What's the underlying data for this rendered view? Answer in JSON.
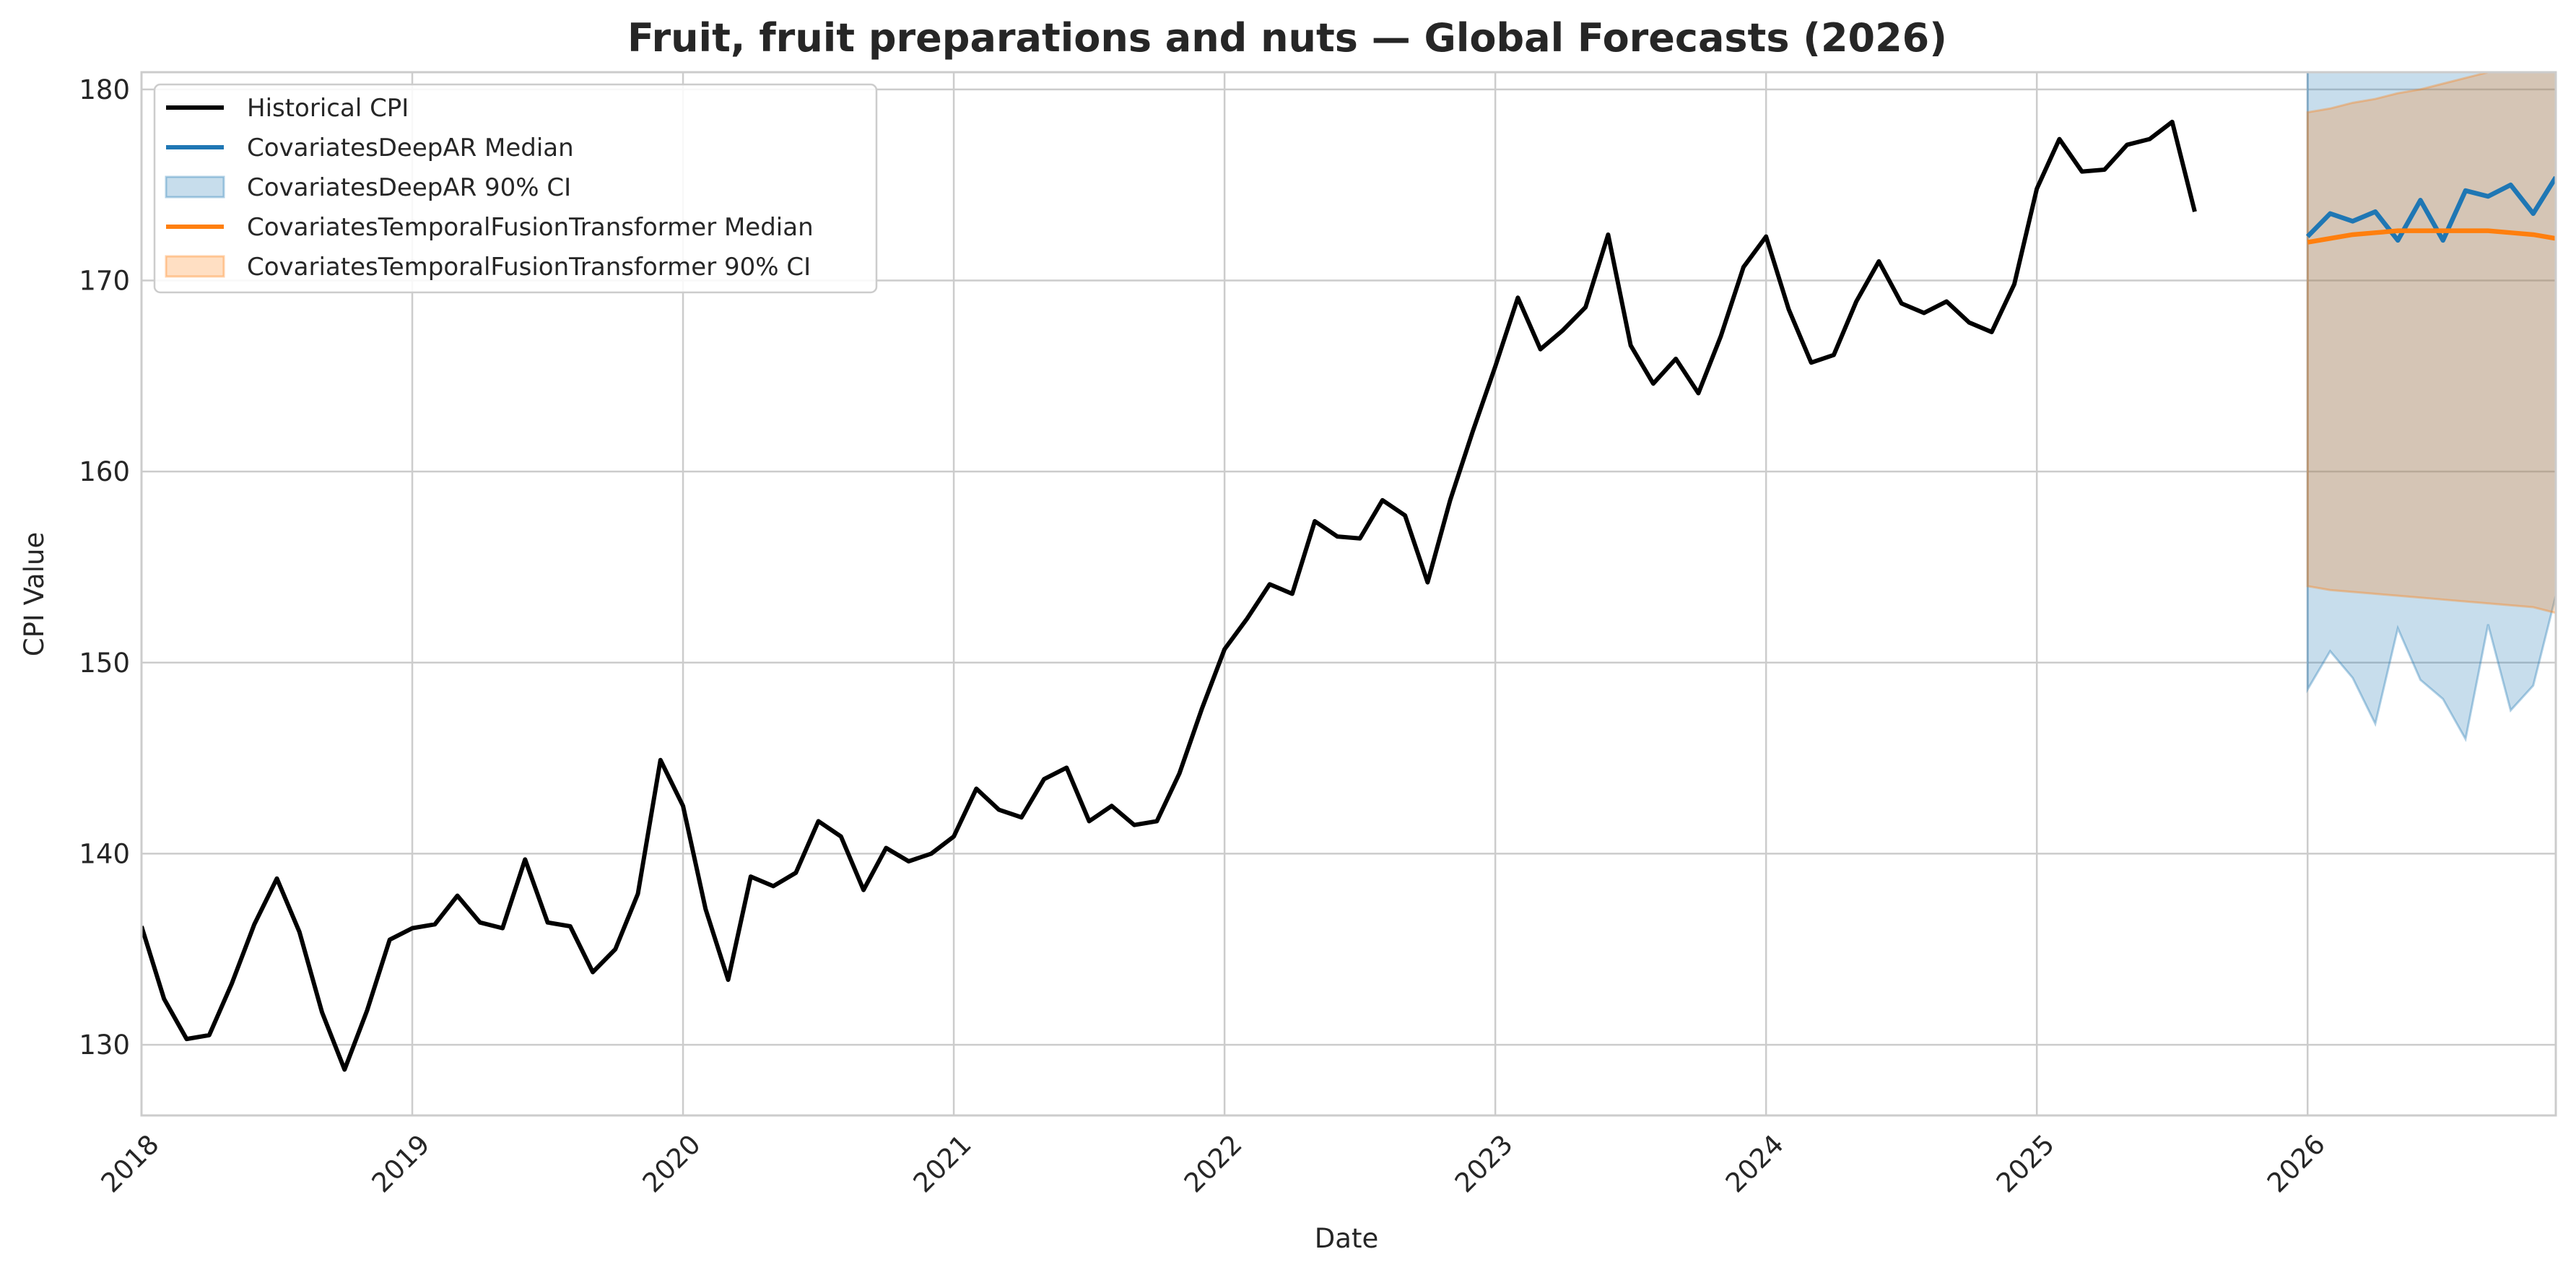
{
  "chart_data": {
    "type": "line",
    "title": "Fruit, fruit preparations and nuts — Global Forecasts (2026)",
    "xlabel": "Date",
    "ylabel": "CPI Value",
    "x_range": [
      "2018-01-01",
      "2026-12-01"
    ],
    "ylim": [
      126.3,
      180.9
    ],
    "x_ticks": [
      "2018",
      "2019",
      "2020",
      "2021",
      "2022",
      "2023",
      "2024",
      "2025",
      "2026"
    ],
    "y_ticks": [
      130,
      140,
      150,
      160,
      170,
      180
    ],
    "grid": true,
    "legend_position": "upper-left",
    "colors": {
      "historical": "#000000",
      "deepar": "#1f77b4",
      "tft": "#ff7f0e"
    },
    "series": [
      {
        "name": "Historical CPI",
        "kind": "line",
        "color": "#000000",
        "x": [
          "2018-01",
          "2018-02",
          "2018-03",
          "2018-04",
          "2018-05",
          "2018-06",
          "2018-07",
          "2018-08",
          "2018-09",
          "2018-10",
          "2018-11",
          "2018-12",
          "2019-01",
          "2019-02",
          "2019-03",
          "2019-04",
          "2019-05",
          "2019-06",
          "2019-07",
          "2019-08",
          "2019-09",
          "2019-10",
          "2019-11",
          "2019-12",
          "2020-01",
          "2020-02",
          "2020-03",
          "2020-04",
          "2020-05",
          "2020-06",
          "2020-07",
          "2020-08",
          "2020-09",
          "2020-10",
          "2020-11",
          "2020-12",
          "2021-01",
          "2021-02",
          "2021-03",
          "2021-04",
          "2021-05",
          "2021-06",
          "2021-07",
          "2021-08",
          "2021-09",
          "2021-10",
          "2021-11",
          "2021-12",
          "2022-01",
          "2022-02",
          "2022-03",
          "2022-04",
          "2022-05",
          "2022-06",
          "2022-07",
          "2022-08",
          "2022-09",
          "2022-10",
          "2022-11",
          "2022-12",
          "2023-01",
          "2023-02",
          "2023-03",
          "2023-04",
          "2023-05",
          "2023-06",
          "2023-07",
          "2023-08",
          "2023-09",
          "2023-10",
          "2023-11",
          "2023-12",
          "2024-01",
          "2024-02",
          "2024-03",
          "2024-04",
          "2024-05",
          "2024-06",
          "2024-07",
          "2024-08",
          "2024-09",
          "2024-10",
          "2024-11",
          "2024-12",
          "2025-01",
          "2025-02",
          "2025-03",
          "2025-04",
          "2025-05",
          "2025-06",
          "2025-07",
          "2025-08"
        ],
        "values": [
          136.2,
          132.4,
          130.3,
          130.5,
          133.2,
          136.3,
          138.7,
          135.9,
          131.7,
          128.7,
          131.8,
          135.5,
          136.1,
          136.3,
          137.8,
          136.4,
          136.1,
          139.7,
          136.4,
          136.2,
          133.8,
          135.0,
          137.9,
          144.9,
          142.5,
          137.1,
          133.4,
          138.8,
          138.3,
          139.0,
          141.7,
          140.9,
          138.1,
          140.3,
          139.6,
          140.0,
          140.9,
          143.4,
          142.3,
          141.9,
          143.9,
          144.5,
          141.7,
          142.5,
          141.5,
          141.7,
          144.2,
          147.6,
          150.7,
          152.3,
          154.1,
          153.6,
          157.4,
          156.6,
          156.5,
          158.5,
          157.7,
          154.2,
          158.5,
          162.1,
          165.5,
          169.1,
          166.4,
          167.4,
          168.6,
          172.4,
          166.6,
          164.6,
          165.9,
          164.1,
          167.1,
          170.7,
          172.3,
          168.5,
          165.7,
          166.1,
          168.9,
          171.0,
          168.8,
          168.3,
          168.9,
          167.8,
          167.3,
          169.8,
          174.8,
          177.4,
          175.7,
          175.8,
          177.1,
          177.4,
          178.3,
          173.6
        ]
      },
      {
        "name": "CovariatesDeepAR Median",
        "kind": "line",
        "color": "#1f77b4",
        "x": [
          "2026-01",
          "2026-02",
          "2026-03",
          "2026-04",
          "2026-05",
          "2026-06",
          "2026-07",
          "2026-08",
          "2026-09",
          "2026-10",
          "2026-11",
          "2026-12"
        ],
        "values": [
          172.3,
          173.5,
          173.1,
          173.6,
          172.1,
          174.2,
          172.1,
          174.7,
          174.4,
          175.0,
          173.5,
          175.4
        ]
      },
      {
        "name": "CovariatesDeepAR 90% CI",
        "kind": "band",
        "color": "#1f77b4",
        "x": [
          "2026-01",
          "2026-02",
          "2026-03",
          "2026-04",
          "2026-05",
          "2026-06",
          "2026-07",
          "2026-08",
          "2026-09",
          "2026-10",
          "2026-11",
          "2026-12"
        ],
        "lower": [
          148.6,
          150.6,
          149.2,
          146.8,
          151.8,
          149.1,
          148.1,
          146.0,
          152.0,
          147.5,
          148.8,
          153.5
        ],
        "upper": [
          182.0,
          182.0,
          182.0,
          182.0,
          182.0,
          182.0,
          182.0,
          182.0,
          182.0,
          182.0,
          182.0,
          182.0
        ]
      },
      {
        "name": "CovariatesTemporalFusionTransformer Median",
        "kind": "line",
        "color": "#ff7f0e",
        "x": [
          "2026-01",
          "2026-02",
          "2026-03",
          "2026-04",
          "2026-05",
          "2026-06",
          "2026-07",
          "2026-08",
          "2026-09",
          "2026-10",
          "2026-11",
          "2026-12"
        ],
        "values": [
          172.0,
          172.2,
          172.4,
          172.5,
          172.6,
          172.6,
          172.6,
          172.6,
          172.6,
          172.5,
          172.4,
          172.2
        ]
      },
      {
        "name": "CovariatesTemporalFusionTransformer 90% CI",
        "kind": "band",
        "color": "#ff7f0e",
        "x": [
          "2026-01",
          "2026-02",
          "2026-03",
          "2026-04",
          "2026-05",
          "2026-06",
          "2026-07",
          "2026-08",
          "2026-09",
          "2026-10",
          "2026-11",
          "2026-12"
        ],
        "lower": [
          154.0,
          153.8,
          153.7,
          153.6,
          153.5,
          153.4,
          153.3,
          153.2,
          153.1,
          153.0,
          152.9,
          152.6
        ],
        "upper": [
          178.8,
          179.0,
          179.3,
          179.5,
          179.8,
          180.0,
          180.3,
          180.6,
          180.9,
          181.2,
          181.5,
          181.8
        ]
      }
    ]
  }
}
